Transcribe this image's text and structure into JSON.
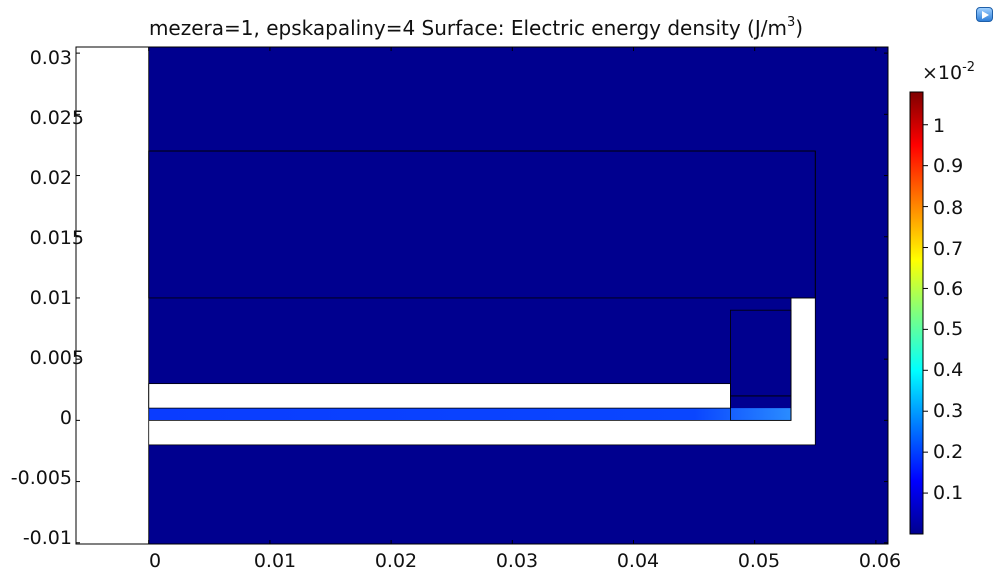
{
  "title": {
    "prefix": "mezera=1, epskapaliny=4   Surface: Electric energy density (J/m",
    "sup": "3",
    "suffix": ")"
  },
  "colorbar": {
    "multiplier_base": "×10",
    "multiplier_exp": "-2",
    "ticks": [
      "0.1",
      "0.2",
      "0.3",
      "0.4",
      "0.5",
      "0.6",
      "0.7",
      "0.8",
      "0.9",
      "1"
    ],
    "range": [
      0.0,
      0.0108
    ],
    "colormap": [
      "#00008f",
      "#0000ff",
      "#007fff",
      "#00ffff",
      "#7fff7f",
      "#ffff00",
      "#ff7f00",
      "#ff0000",
      "#7f0000"
    ]
  },
  "chart_data": {
    "type": "heatmap",
    "title": "mezera=1, epskapaliny=4   Surface: Electric energy density (J/m^3)",
    "xlim": [
      -0.006,
      0.061
    ],
    "ylim": [
      -0.0101,
      0.0305
    ],
    "x_ticks": [
      "0",
      "0.01",
      "0.02",
      "0.03",
      "0.04",
      "0.05",
      "0.06"
    ],
    "x_tick_values": [
      0,
      0.01,
      0.02,
      0.03,
      0.04,
      0.05,
      0.06
    ],
    "y_ticks": [
      "0.03",
      "0.025",
      "0.02",
      "0.015",
      "0.01",
      "0.005",
      "0",
      "-0.005",
      "-0.01"
    ],
    "y_tick_values": [
      0.03,
      0.025,
      0.02,
      0.015,
      0.01,
      0.005,
      0,
      -0.005,
      -0.01
    ],
    "domain_x": [
      0,
      0.061
    ],
    "background_value": 0.0,
    "background_color": "#00008f",
    "high_field_region": {
      "x": [
        0,
        0.053
      ],
      "y": [
        0,
        0.001
      ],
      "value": 0.0012,
      "color": "#0a3cff"
    },
    "white_regions": [
      {
        "name": "left-axis-gap",
        "x": [
          -0.006,
          0
        ],
        "y": [
          -0.0101,
          0.0305
        ]
      },
      {
        "name": "upper-electrode",
        "x": [
          0,
          0.048
        ],
        "y": [
          0.001,
          0.003
        ]
      },
      {
        "name": "lower-electrode",
        "x": [
          0,
          0.055
        ],
        "y": [
          -0.002,
          0
        ]
      },
      {
        "name": "right-electrode",
        "x": [
          0.053,
          0.055
        ],
        "y": [
          -0.002,
          0.01
        ]
      }
    ],
    "outlines": [
      {
        "x": [
          0,
          0.055
        ],
        "y": [
          0.01,
          0.022
        ]
      },
      {
        "x": [
          0.048,
          0.053
        ],
        "y": [
          0.002,
          0.009
        ]
      },
      {
        "x": [
          0.048,
          0.053
        ],
        "y": [
          0,
          0.002
        ]
      }
    ]
  }
}
